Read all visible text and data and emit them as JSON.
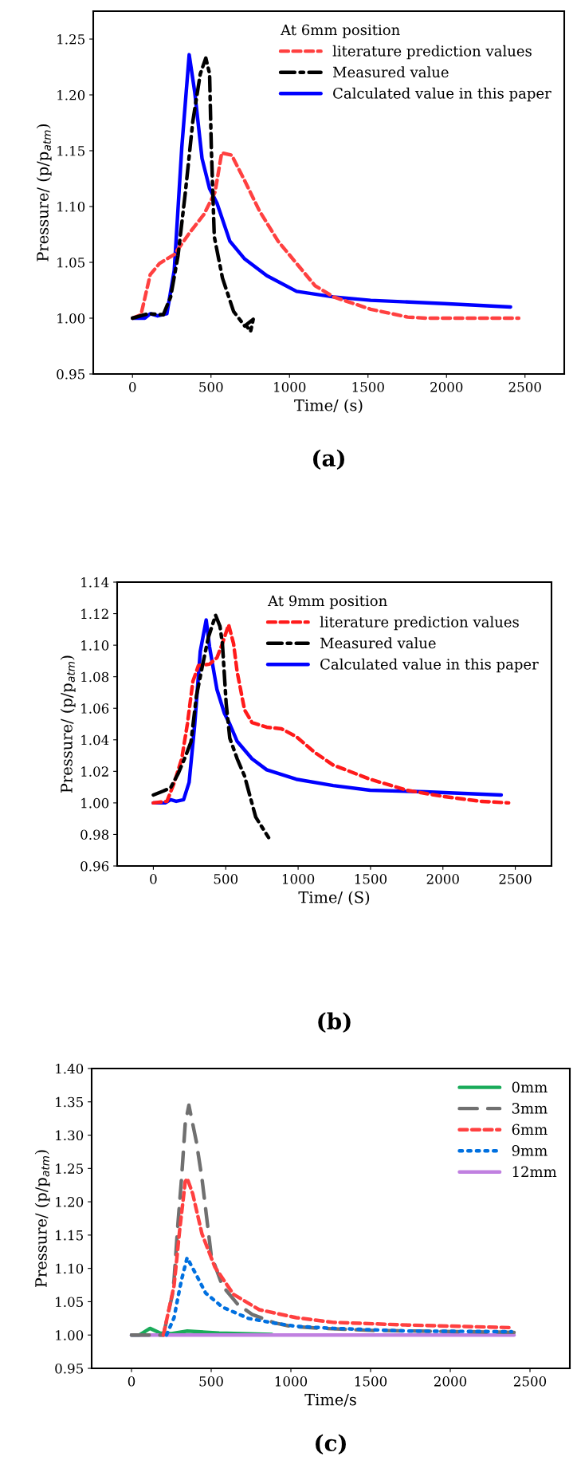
{
  "chart_data": [
    {
      "type": "line",
      "xlabel": "Time/ (s)",
      "ylabel": "Pressure/ (p/p$_{atm}$)",
      "legend_title": "At 6mm position",
      "legend": "top right",
      "xlim": [
        -250,
        2750
      ],
      "ylim": [
        0.95,
        1.275
      ],
      "xticks": [
        0,
        500,
        1000,
        1500,
        2000,
        2500
      ],
      "yticks": [
        0.95,
        {
          "value": 1.0,
          "label": "1.00"
        },
        1.05,
        {
          "value": 1.1,
          "label": "1.10"
        },
        1.15,
        {
          "value": 1.2,
          "label": "1.20"
        },
        1.25
      ],
      "grid": false,
      "annotations": [
        "(a)"
      ],
      "series": [
        {
          "name": "literature prediction values",
          "color": "#ff4040",
          "line_style": "dashed",
          "x": [
            0,
            54,
            113,
            172,
            266,
            361,
            455,
            526,
            568,
            632,
            715,
            809,
            927,
            1045,
            1163,
            1281,
            1517,
            1752,
            1870,
            2460
          ],
          "values": [
            1.0,
            1.003,
            1.039,
            1.049,
            1.057,
            1.076,
            1.093,
            1.113,
            1.148,
            1.146,
            1.123,
            1.096,
            1.069,
            1.049,
            1.029,
            1.019,
            1.008,
            1.001,
            1.0,
            1.0
          ]
        },
        {
          "name": "Measured value",
          "color": "#000000",
          "line_style": "dashdot",
          "x": [
            0,
            101,
            196,
            243,
            290,
            337,
            384,
            432,
            467,
            491,
            502,
            521,
            573,
            644,
            715,
            769,
            752,
            726
          ],
          "values": [
            1.0,
            1.004,
            1.003,
            1.019,
            1.056,
            1.113,
            1.176,
            1.219,
            1.233,
            1.219,
            1.153,
            1.073,
            1.036,
            1.006,
            0.993,
            0.999,
            0.988,
            0.993
          ]
        },
        {
          "name": "Calculated value in this paper",
          "color": "#0000ff",
          "line_style": "solid",
          "x": [
            0,
            78,
            113,
            160,
            219,
            266,
            314,
            361,
            396,
            443,
            491,
            538,
            620,
            715,
            856,
            1045,
            1281,
            1517,
            1986,
            2408
          ],
          "values": [
            1.0,
            1.0,
            1.004,
            1.002,
            1.004,
            1.043,
            1.153,
            1.236,
            1.203,
            1.143,
            1.116,
            1.103,
            1.069,
            1.053,
            1.038,
            1.024,
            1.019,
            1.016,
            1.013,
            1.01
          ]
        }
      ]
    },
    {
      "type": "line",
      "xlabel": "Time/ (S)",
      "ylabel": "Pressure/ (p/p$_{atm}$)",
      "legend_title": "At 9mm position",
      "legend": "top right",
      "xlim": [
        -250,
        2750
      ],
      "ylim": [
        0.96,
        1.14
      ],
      "xticks": [
        0,
        500,
        1000,
        1500,
        2000,
        2500
      ],
      "yticks": [
        0.96,
        0.98,
        {
          "value": 1.0,
          "label": "1.00"
        },
        1.02,
        1.04,
        1.06,
        1.08,
        {
          "value": 1.1,
          "label": "1.10"
        },
        1.12,
        1.14
      ],
      "grid": false,
      "annotations": [
        "(b)"
      ],
      "series": [
        {
          "name": "literature prediction values",
          "color": "#ff1a1a",
          "line_style": "dashed",
          "x": [
            0,
            94,
            145,
            196,
            235,
            273,
            311,
            388,
            439,
            477,
            520,
            554,
            579,
            630,
            681,
            783,
            885,
            987,
            1115,
            1242,
            1497,
            1753,
            2008,
            2263,
            2454
          ],
          "values": [
            1.0,
            1.001,
            1.013,
            1.028,
            1.05,
            1.077,
            1.087,
            1.088,
            1.092,
            1.101,
            1.113,
            1.101,
            1.083,
            1.059,
            1.051,
            1.048,
            1.047,
            1.042,
            1.032,
            1.024,
            1.015,
            1.008,
            1.004,
            1.001,
            1.0
          ]
        },
        {
          "name": "Measured value",
          "color": "#000000",
          "line_style": "dashdot",
          "x": [
            0,
            69,
            120,
            171,
            222,
            260,
            298,
            337,
            380,
            430,
            460,
            477,
            503,
            528,
            579,
            630,
            707,
            796
          ],
          "values": [
            1.005,
            1.0075,
            1.0097,
            1.0185,
            1.0295,
            1.0387,
            1.068,
            1.086,
            1.105,
            1.119,
            1.112,
            1.101,
            1.063,
            1.041,
            1.028,
            1.017,
            0.991,
            0.978
          ]
        },
        {
          "name": "Calculated value in this paper",
          "color": "#0000ff",
          "line_style": "solid",
          "x": [
            0,
            82,
            120,
            158,
            209,
            247,
            286,
            324,
            365,
            388,
            439,
            490,
            528,
            579,
            681,
            783,
            987,
            1242,
            1497,
            1880,
            2403
          ],
          "values": [
            1.0,
            1.0,
            1.002,
            1.001,
            1.002,
            1.013,
            1.05,
            1.096,
            1.116,
            1.099,
            1.072,
            1.057,
            1.05,
            1.039,
            1.028,
            1.021,
            1.015,
            1.011,
            1.008,
            1.007,
            1.005
          ]
        }
      ]
    },
    {
      "type": "line",
      "xlabel": "Time/s",
      "ylabel": "Pressure/ (p/p$_{atm}$)",
      "legend": "top right",
      "xlim": [
        -250,
        2750
      ],
      "ylim": [
        0.95,
        1.4
      ],
      "xticks": [
        0,
        500,
        1000,
        1500,
        2000,
        2500
      ],
      "yticks": [
        0.95,
        {
          "value": 1.0,
          "label": "1.00"
        },
        1.05,
        {
          "value": 1.1,
          "label": "1.10"
        },
        1.15,
        {
          "value": 1.2,
          "label": "1.20"
        },
        1.25,
        {
          "value": 1.3,
          "label": "1.30"
        },
        1.35,
        {
          "value": 1.4,
          "label": "1.40"
        }
      ],
      "grid": false,
      "annotations": [
        "(c)"
      ],
      "series": [
        {
          "name": "0mm",
          "color": "#1aab5a",
          "line_style": "solid",
          "x": [
            0,
            50,
            116,
            180,
            250,
            350,
            550,
            880
          ],
          "values": [
            1.0,
            1.0,
            1.01,
            1.003,
            1.002,
            1.006,
            1.003,
            1.001
          ]
        },
        {
          "name": "3mm",
          "color": "#707070",
          "line_style": "longdash",
          "x": [
            0,
            200,
            256,
            267,
            291,
            314,
            337,
            360,
            407,
            442,
            500,
            570,
            663,
            756,
            900,
            1000,
            1200,
            1500,
            1800,
            2100,
            2400
          ],
          "values": [
            1.0,
            1.0,
            1.06,
            1.083,
            1.166,
            1.235,
            1.317,
            1.345,
            1.29,
            1.235,
            1.12,
            1.074,
            1.047,
            1.031,
            1.018,
            1.013,
            1.01,
            1.007,
            1.006,
            1.005,
            1.004
          ]
        },
        {
          "name": "6mm",
          "color": "#ff4040",
          "line_style": "dashed",
          "x": [
            200,
            267,
            302,
            337,
            350,
            384,
            442,
            523,
            640,
            802,
            1035,
            1267,
            1733,
            2395
          ],
          "values": [
            1.0,
            1.074,
            1.157,
            1.23,
            1.235,
            1.212,
            1.152,
            1.102,
            1.061,
            1.038,
            1.026,
            1.019,
            1.015,
            1.011
          ]
        },
        {
          "name": "9mm",
          "color": "#0070e0",
          "line_style": "dotted",
          "x": [
            220,
            267,
            291,
            314,
            349,
            407,
            465,
            570,
            733,
            895,
            1035,
            1267,
            1500,
            1733,
            2384
          ],
          "values": [
            1.0,
            1.026,
            1.056,
            1.083,
            1.116,
            1.09,
            1.063,
            1.042,
            1.025,
            1.018,
            1.013,
            1.01,
            1.008,
            1.006,
            1.005
          ]
        },
        {
          "name": "12mm",
          "color": "#c080e0",
          "line_style": "solid",
          "x": [
            0,
            2400
          ],
          "values": [
            1.0,
            1.0
          ]
        }
      ]
    }
  ]
}
